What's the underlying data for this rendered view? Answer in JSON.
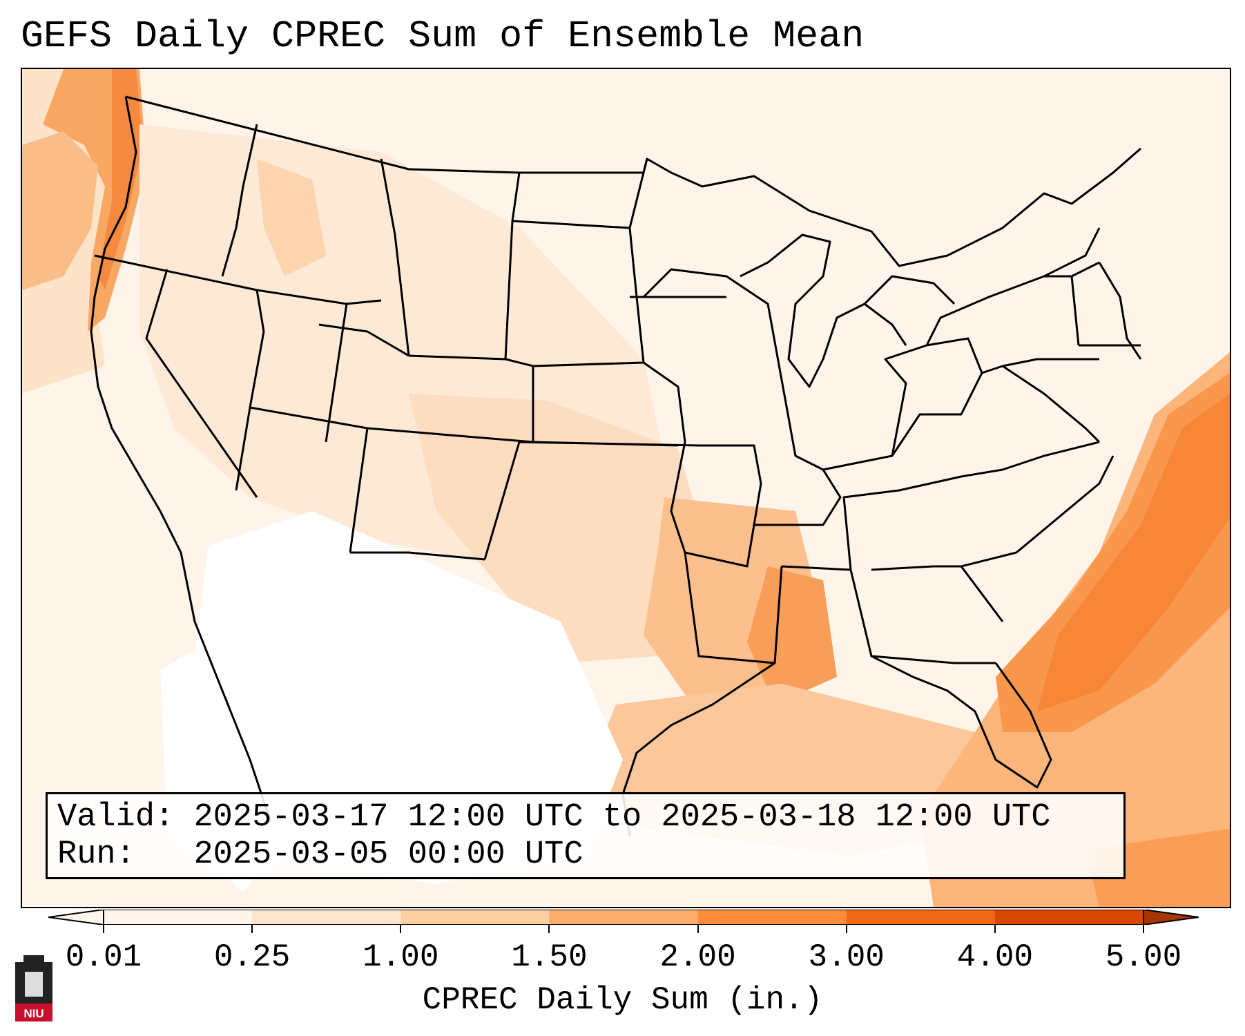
{
  "title": "GEFS Daily CPREC Sum of Ensemble Mean",
  "info_box": {
    "valid_label": "Valid:",
    "valid_value": "2025-03-17 12:00 UTC to 2025-03-18 12:00 UTC",
    "run_label": "Run:",
    "run_value": "2025-03-05 00:00 UTC"
  },
  "colorbar": {
    "label": "CPREC Daily Sum (in.)",
    "ticks": [
      "0.01",
      "0.25",
      "1.00",
      "1.50",
      "2.00",
      "3.00",
      "4.00",
      "5.00"
    ],
    "colors": [
      "#fff5eb",
      "#fee6ce",
      "#fdd0a2",
      "#fdae6b",
      "#fd8d3c",
      "#f16913",
      "#d94801",
      "#a63603"
    ],
    "extend": "both"
  },
  "map": {
    "region": "Continental United States",
    "feature_colors": {
      "background": "#fef4ea",
      "light": "#fde9d6",
      "medium": "#fdd0a2",
      "heavy": "#fdae6b",
      "heaviest": "#fb8b3e",
      "boundaries": "#000000"
    }
  },
  "logo": {
    "text": "NIU"
  }
}
